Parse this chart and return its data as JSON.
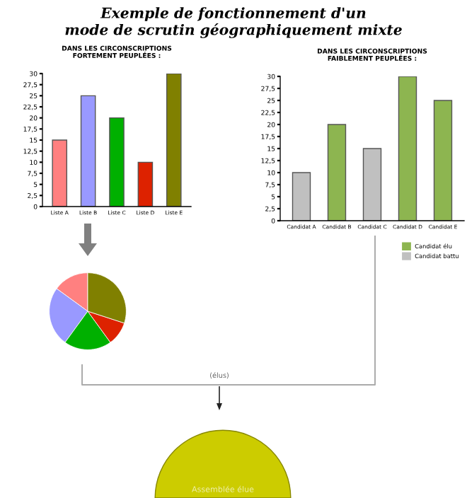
{
  "chart_data": [
    {
      "type": "other",
      "title": "Exemple de fonctionnement d'un\nmode de scrutin géographiquement mixte"
    },
    {
      "type": "bar",
      "title": "DANS LES CIRCONSCRIPTIONS\nFORTEMENT PEUPLÉES :",
      "categories": [
        "Liste A",
        "Liste B",
        "Liste C",
        "Liste D",
        "Liste E"
      ],
      "values": [
        15,
        25,
        20,
        10,
        30
      ],
      "colors": [
        "#ff8080",
        "#9999ff",
        "#00b000",
        "#dd2200",
        "#808000"
      ],
      "ylim": [
        0,
        30
      ],
      "yticks": [
        0,
        {
          "value": 2.5,
          "label": "2,5"
        },
        5,
        {
          "value": 7.5,
          "label": "7,5"
        },
        10,
        {
          "value": 12.5,
          "label": "12,5"
        },
        15,
        {
          "value": 17.5,
          "label": "17,5"
        },
        20,
        {
          "value": 22.5,
          "label": "22,5"
        },
        25,
        {
          "value": 27.5,
          "label": "27,5"
        },
        30
      ],
      "grid": false
    },
    {
      "type": "bar",
      "title": "DANS LES CIRCONSCRIPTIONS\nFAIBLEMENT PEUPLÉES :",
      "categories": [
        "Candidat A",
        "Candidat B",
        "Candidat C",
        "Candidat D",
        "Candidat E"
      ],
      "stacked": true,
      "series": [
        {
          "name": "Candidat élu",
          "color": "#8db550",
          "values": [
            null,
            20,
            null,
            30,
            25
          ]
        },
        {
          "name": "Candidat battu",
          "color": "#c0c0c0",
          "values": [
            10,
            null,
            15,
            null,
            null
          ]
        }
      ],
      "ylim": [
        0,
        30
      ],
      "yticks": [
        0,
        {
          "value": 2.5,
          "label": "2,5"
        },
        5,
        {
          "value": 7.5,
          "label": "7,5"
        },
        10,
        {
          "value": 12.5,
          "label": "12,5"
        },
        15,
        {
          "value": 17.5,
          "label": "17,5"
        },
        20,
        {
          "value": 22.5,
          "label": "22,5"
        },
        25,
        {
          "value": 27.5,
          "label": "27,5"
        },
        30
      ],
      "grid": false,
      "legend": "bottom right"
    },
    {
      "type": "pie",
      "categories": [
        null,
        null,
        null,
        null,
        null
      ],
      "values": [
        15,
        25,
        20,
        10,
        30
      ],
      "colors": [
        "#ff8080",
        "#9999ff",
        "#00b000",
        "#dd2200",
        "#808000"
      ]
    },
    {
      "type": "other",
      "annotations": [
        "(élus)",
        "Assemblée élue"
      ]
    }
  ]
}
